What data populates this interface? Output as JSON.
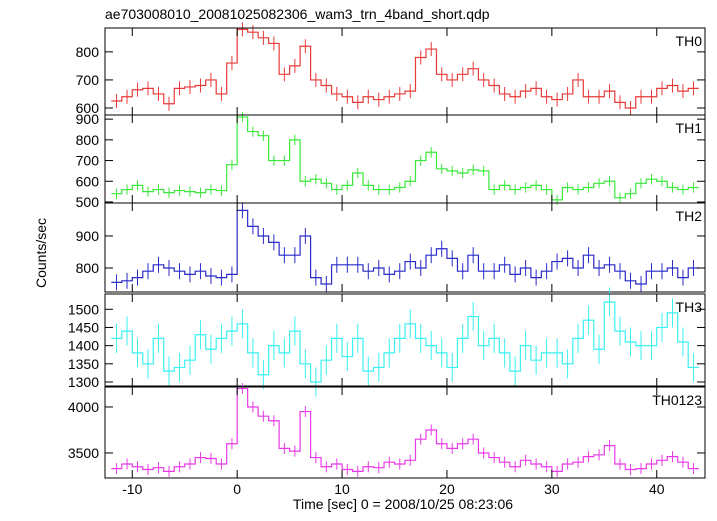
{
  "chart_data": {
    "type": "line",
    "title": "ae703008010_20081025082306_wam3_trn_4band_short.qdp",
    "xlabel": "Time [sec] 0 = 2008/10/25 08:23:06",
    "ylabel": "Counts/sec",
    "xlim": [
      -12.6,
      44.6
    ],
    "xticks": [
      -10,
      0,
      10,
      20,
      30,
      40
    ],
    "x": [
      -12,
      -11,
      -10,
      -9,
      -8,
      -7,
      -6,
      -5,
      -4,
      -3,
      -2,
      -1,
      0,
      1,
      2,
      3,
      4,
      5,
      6,
      7,
      8,
      9,
      10,
      11,
      12,
      13,
      14,
      15,
      16,
      17,
      18,
      19,
      20,
      21,
      22,
      23,
      24,
      25,
      26,
      27,
      28,
      29,
      30,
      31,
      32,
      33,
      34,
      35,
      36,
      37,
      38,
      39,
      40,
      41,
      42,
      43
    ],
    "series": [
      {
        "name": "TH0",
        "color": "#e83a3a",
        "error": 25,
        "ylim": [
          575,
          885
        ],
        "yticks": [
          600,
          700,
          800
        ],
        "values": [
          625,
          640,
          665,
          670,
          650,
          615,
          670,
          675,
          680,
          700,
          650,
          760,
          880,
          870,
          850,
          830,
          720,
          750,
          820,
          700,
          680,
          650,
          640,
          620,
          640,
          630,
          640,
          650,
          660,
          780,
          810,
          720,
          700,
          720,
          740,
          700,
          680,
          650,
          640,
          660,
          670,
          640,
          630,
          650,
          700,
          640,
          640,
          660,
          620,
          600,
          640,
          640,
          670,
          680,
          660,
          670
        ]
      },
      {
        "name": "TH1",
        "color": "#3ae83a",
        "error": 25,
        "ylim": [
          495,
          920
        ],
        "yticks": [
          500,
          600,
          700,
          800,
          900
        ],
        "values": [
          540,
          560,
          580,
          550,
          560,
          545,
          555,
          550,
          545,
          560,
          555,
          680,
          910,
          840,
          820,
          700,
          700,
          800,
          600,
          610,
          590,
          560,
          580,
          640,
          580,
          560,
          560,
          570,
          600,
          700,
          740,
          660,
          650,
          640,
          655,
          650,
          560,
          580,
          560,
          570,
          580,
          560,
          510,
          570,
          560,
          570,
          590,
          600,
          520,
          540,
          590,
          610,
          600,
          570,
          560,
          570
        ]
      },
      {
        "name": "TH2",
        "color": "#2a2ac8",
        "error": 25,
        "ylim": [
          725,
          1003
        ],
        "yticks": [
          800,
          900
        ],
        "values": [
          755,
          760,
          770,
          790,
          810,
          800,
          790,
          780,
          790,
          775,
          770,
          780,
          980,
          930,
          900,
          880,
          840,
          840,
          900,
          770,
          750,
          810,
          810,
          810,
          790,
          800,
          780,
          790,
          820,
          800,
          840,
          860,
          830,
          790,
          840,
          790,
          790,
          810,
          780,
          800,
          770,
          790,
          820,
          830,
          800,
          840,
          800,
          810,
          790,
          760,
          750,
          790,
          790,
          800,
          770,
          800
        ]
      },
      {
        "name": "TH3",
        "color": "#3af0f0",
        "error": 40,
        "ylim": [
          1289,
          1542
        ],
        "yticks": [
          1300,
          1350,
          1400,
          1450,
          1500
        ],
        "values": [
          1420,
          1440,
          1380,
          1350,
          1420,
          1330,
          1340,
          1360,
          1430,
          1390,
          1420,
          1440,
          1460,
          1380,
          1320,
          1400,
          1380,
          1440,
          1350,
          1300,
          1360,
          1420,
          1370,
          1420,
          1330,
          1340,
          1380,
          1420,
          1460,
          1420,
          1400,
          1380,
          1340,
          1420,
          1480,
          1400,
          1420,
          1380,
          1330,
          1400,
          1360,
          1380,
          1380,
          1350,
          1420,
          1470,
          1390,
          1520,
          1440,
          1410,
          1400,
          1400,
          1450,
          1490,
          1410,
          1340
        ]
      },
      {
        "name": "TH0123",
        "color": "#e83ae8",
        "error": 60,
        "ylim": [
          3228,
          4217
        ],
        "yticks": [
          3500,
          4000
        ],
        "values": [
          3330,
          3380,
          3350,
          3320,
          3340,
          3300,
          3350,
          3380,
          3450,
          3440,
          3380,
          3600,
          4200,
          4000,
          3900,
          3850,
          3550,
          3520,
          3950,
          3450,
          3350,
          3380,
          3320,
          3300,
          3350,
          3340,
          3400,
          3380,
          3420,
          3650,
          3750,
          3600,
          3550,
          3600,
          3650,
          3500,
          3450,
          3400,
          3350,
          3420,
          3380,
          3350,
          3300,
          3380,
          3400,
          3460,
          3480,
          3580,
          3380,
          3320,
          3330,
          3380,
          3420,
          3460,
          3400,
          3330
        ]
      }
    ]
  }
}
